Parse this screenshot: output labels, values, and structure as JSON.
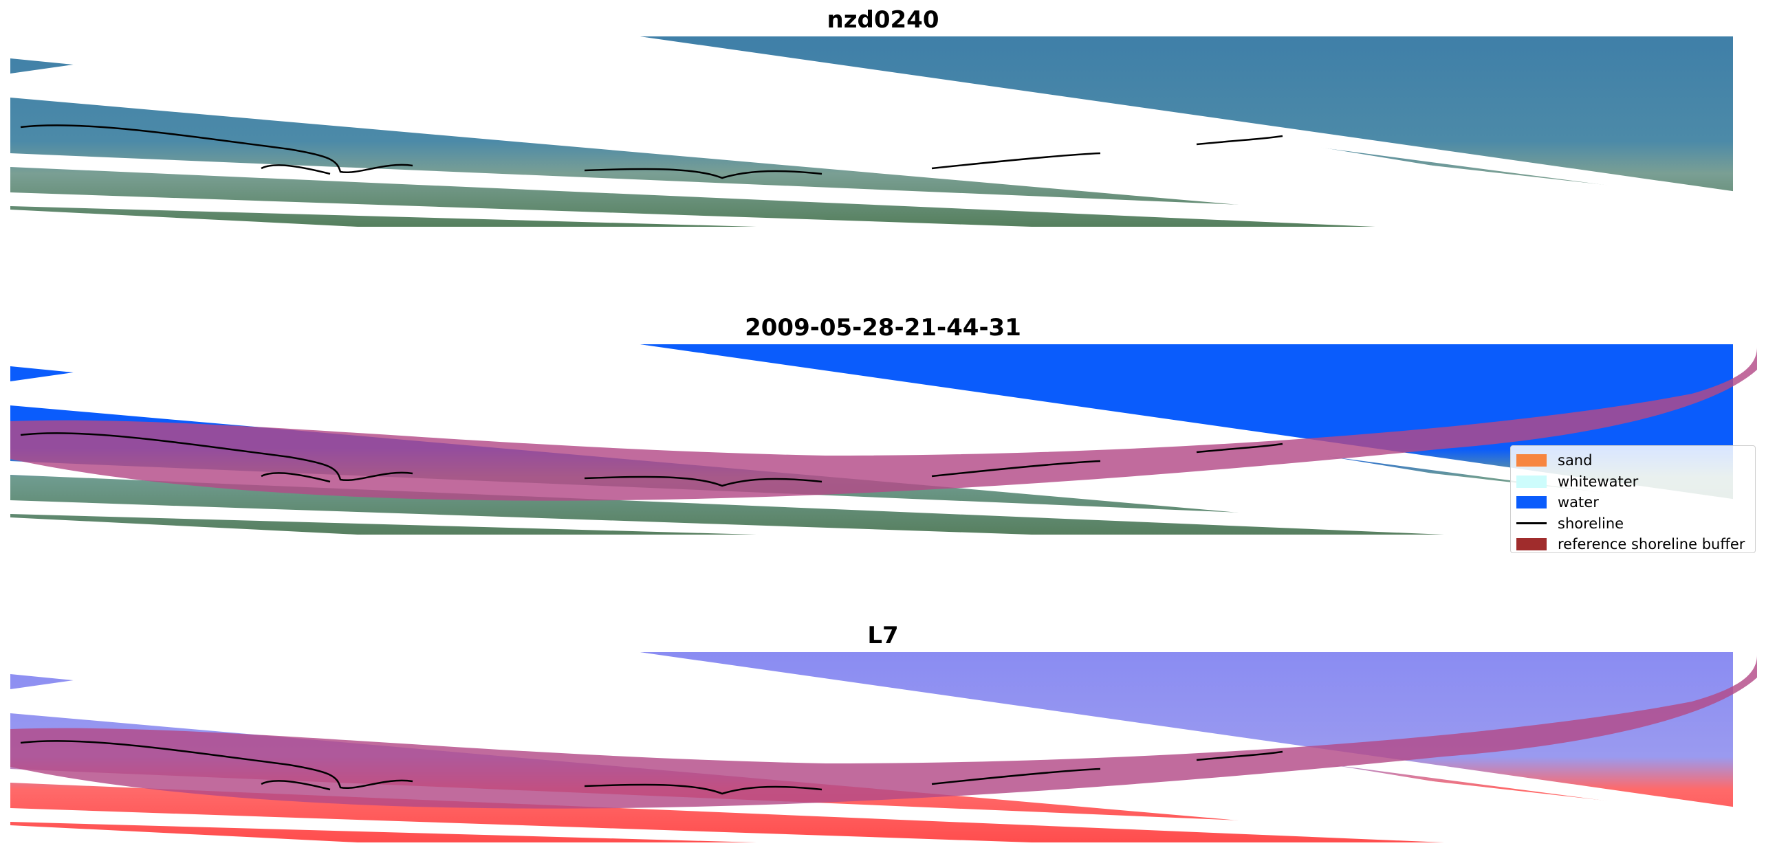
{
  "panels": [
    {
      "title": "nzd0240",
      "kind": "rgb"
    },
    {
      "title": "2009-05-28-21-44-31",
      "kind": "classified"
    },
    {
      "title": "L7",
      "kind": "index"
    }
  ],
  "legend": {
    "placement": "right",
    "items": [
      {
        "label": "sand",
        "color": "#f7853f",
        "kind": "patch"
      },
      {
        "label": "whitewater",
        "color": "#cdfcfc",
        "kind": "patch"
      },
      {
        "label": "water",
        "color": "#0a5cfc",
        "kind": "patch"
      },
      {
        "label": "shoreline",
        "color": "#000000",
        "kind": "line"
      },
      {
        "label": "reference shoreline buffer",
        "color": "#a02c2c",
        "kind": "patch"
      }
    ]
  },
  "colors": {
    "ocean": "#3f7fa8",
    "land": "#5c8a6f",
    "water_class": "#0a5cfc",
    "buffer": "#b34a88",
    "index_water": "#8a8cf2",
    "index_land": "#ff5656"
  },
  "chart_data": {
    "type": "image",
    "grid": false,
    "axes": "off"
  }
}
